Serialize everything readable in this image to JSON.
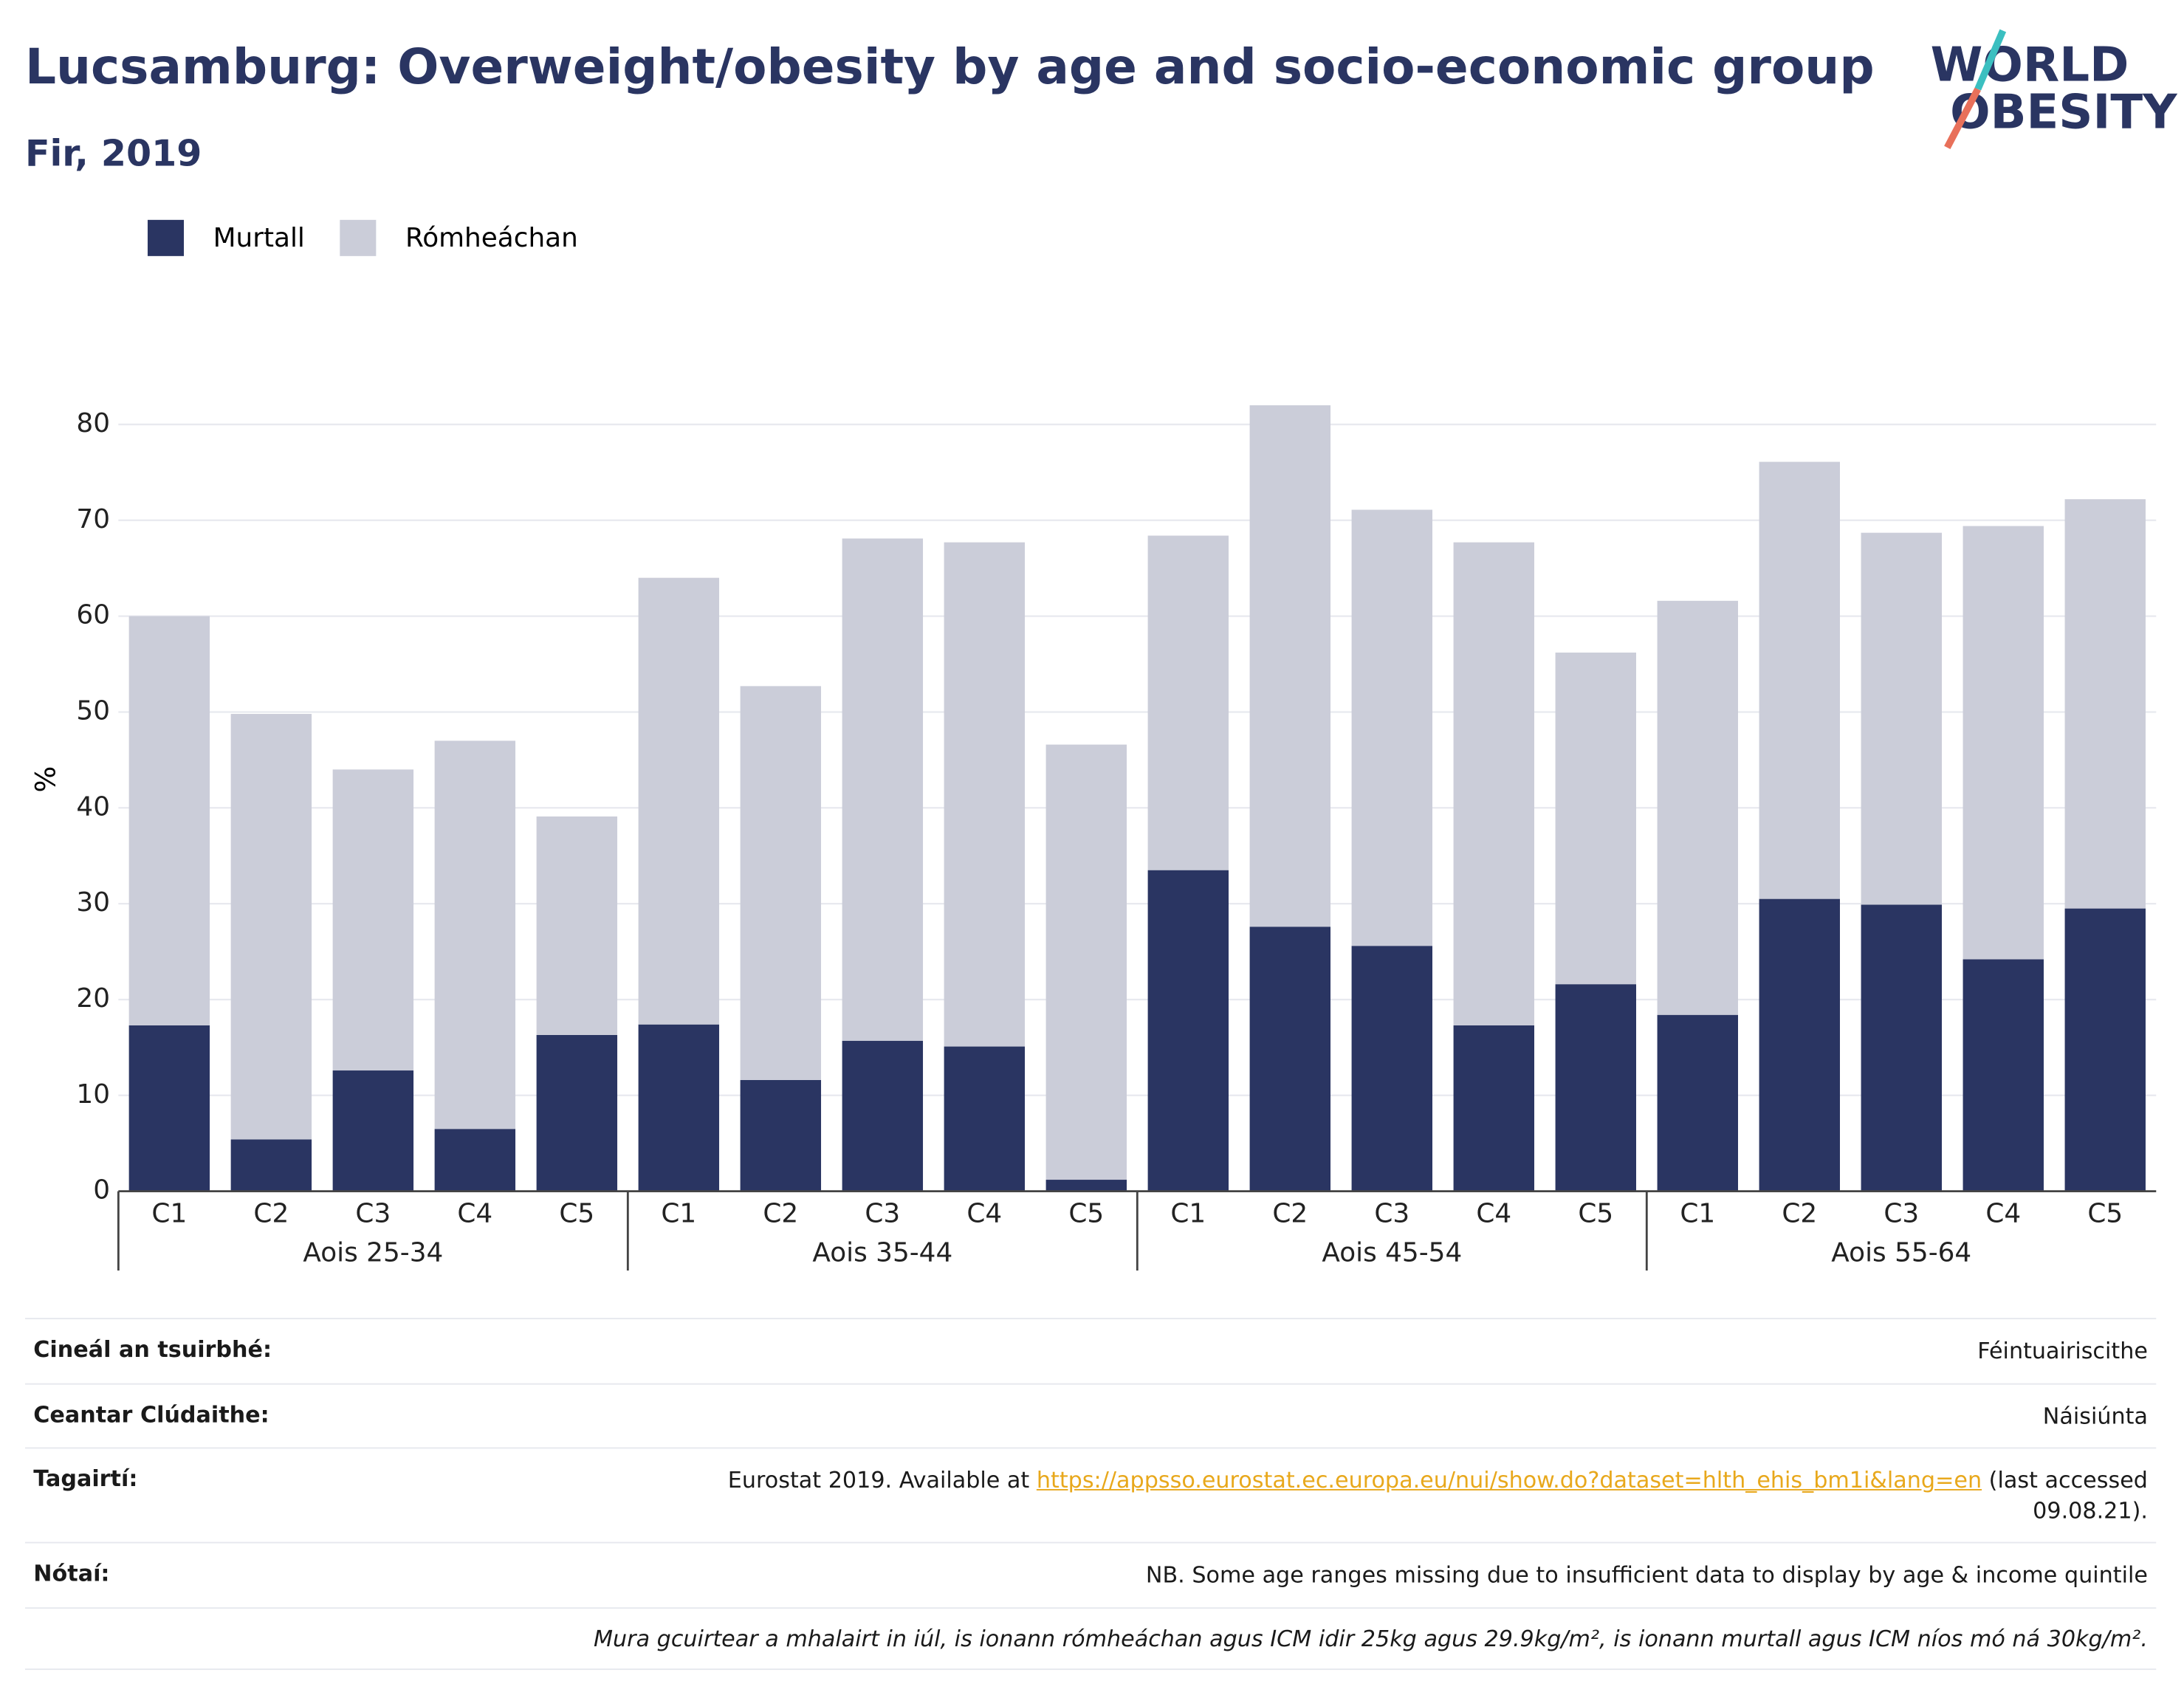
{
  "chart_data": {
    "type": "stacked_bar",
    "title": "Lucsamburg: Overweight/obesity by age and socio-economic group",
    "subtitle": "Fir, 2019",
    "y_label": "%",
    "logo": {
      "line1": "WORLD",
      "line2": "OBESITY"
    },
    "categories": [
      "C1",
      "C2",
      "C3",
      "C4",
      "C5",
      "C1",
      "C2",
      "C3",
      "C4",
      "C5",
      "C1",
      "C2",
      "C3",
      "C4",
      "C5",
      "C1",
      "C2",
      "C3",
      "C4",
      "C5"
    ],
    "group_labels": [
      "Aois 25-34",
      "Aois 35-44",
      "Aois 45-54",
      "Aois 55-64"
    ],
    "series": [
      {
        "name": "Murtall",
        "color": "#2a3562",
        "values": [
          17.3,
          5.4,
          12.6,
          6.5,
          16.3,
          17.4,
          11.6,
          15.7,
          15.1,
          1.2,
          33.5,
          27.6,
          25.6,
          17.3,
          21.6,
          18.4,
          30.5,
          29.9,
          24.2,
          29.5
        ]
      },
      {
        "name": "Rómheáchan",
        "color": "#cbcdd9",
        "values": [
          42.7,
          44.4,
          31.4,
          40.5,
          22.8,
          46.6,
          41.1,
          52.4,
          52.6,
          45.4,
          34.9,
          54.4,
          45.5,
          50.4,
          34.6,
          43.2,
          45.6,
          38.8,
          45.2,
          42.7
        ]
      }
    ],
    "ylim": [
      0,
      82
    ],
    "yticks": [
      0,
      10,
      20,
      30,
      40,
      50,
      60,
      70,
      80
    ],
    "grid": true,
    "legend": "top-left"
  },
  "footer": {
    "rows": [
      {
        "label": "Cineál an tsuirbhé:",
        "value": "Féintuairiscithe"
      },
      {
        "label": "Ceantar Clúdaithe:",
        "value": "Náisiúnta"
      },
      {
        "label": "Tagairtí:",
        "text_before": "Eurostat 2019. Available at",
        "link": "https://appsso.eurostat.ec.europa.eu/nui/show.do?dataset=hlth_ehis_bm1i&lang=en",
        "text_after": "(last accessed 09.08.21)."
      },
      {
        "label": "Nótaí:",
        "value": "NB. Some age ranges missing due to insufficient data to display by age & income quintile"
      }
    ],
    "note": "Mura gcuirtear a mhalairt in iúl, is ionann rómheáchan agus ICM idir 25kg agus 29.9kg/m², is ionann murtall agus ICM níos mó ná 30kg/m²."
  }
}
